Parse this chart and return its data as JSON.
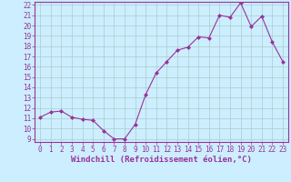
{
  "x": [
    0,
    1,
    2,
    3,
    4,
    5,
    6,
    7,
    8,
    9,
    10,
    11,
    12,
    13,
    14,
    15,
    16,
    17,
    18,
    19,
    20,
    21,
    22,
    23
  ],
  "y": [
    11.1,
    11.6,
    11.7,
    11.1,
    10.9,
    10.8,
    9.8,
    9.0,
    9.0,
    10.4,
    13.3,
    15.4,
    16.5,
    17.6,
    17.9,
    18.9,
    18.8,
    21.0,
    20.8,
    22.2,
    19.9,
    20.9,
    18.4,
    16.5
  ],
  "line_color": "#993399",
  "marker": "D",
  "marker_size": 2,
  "bg_color": "#cceeff",
  "grid_color": "#aacccc",
  "xlabel": "Windchill (Refroidissement éolien,°C)",
  "ylim_min": 9,
  "ylim_max": 22,
  "xlim_min": 0,
  "xlim_max": 23,
  "yticks": [
    9,
    10,
    11,
    12,
    13,
    14,
    15,
    16,
    17,
    18,
    19,
    20,
    21,
    22
  ],
  "xticks": [
    0,
    1,
    2,
    3,
    4,
    5,
    6,
    7,
    8,
    9,
    10,
    11,
    12,
    13,
    14,
    15,
    16,
    17,
    18,
    19,
    20,
    21,
    22,
    23
  ],
  "tick_color": "#993399",
  "label_fontsize": 6.5,
  "tick_fontsize": 5.5,
  "spine_color": "#993399"
}
